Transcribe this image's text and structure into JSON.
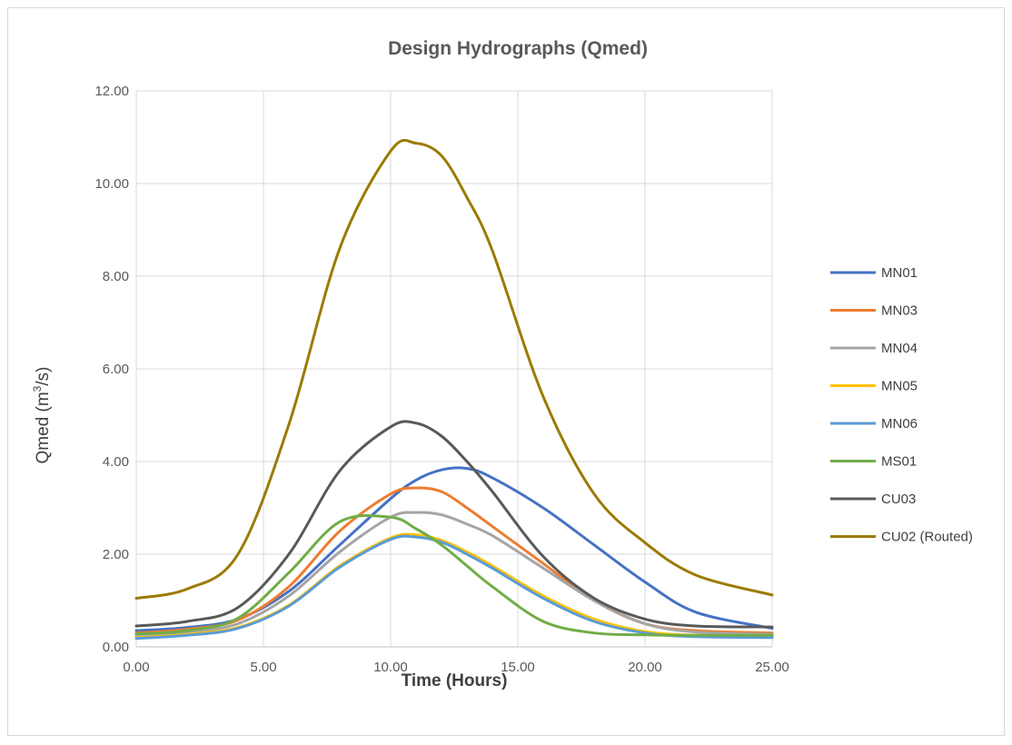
{
  "chart_data": {
    "type": "line",
    "title": "Design Hydrographs (Qmed)",
    "xlabel": "Time (Hours)",
    "ylabel_main": "Qmed (m",
    "ylabel_sup": "3",
    "ylabel_tail": "/s)",
    "xlim": [
      0,
      25
    ],
    "ylim": [
      0,
      12
    ],
    "x_ticks": [
      "0.00",
      "5.00",
      "10.00",
      "15.00",
      "20.00",
      "25.00"
    ],
    "y_ticks": [
      "0.00",
      "2.00",
      "4.00",
      "6.00",
      "8.00",
      "10.00",
      "12.00"
    ],
    "grid": true,
    "legend_position": "right",
    "x": [
      0,
      2,
      4,
      6,
      8,
      10,
      11,
      12,
      13,
      14,
      16,
      18,
      20,
      22,
      25
    ],
    "series": [
      {
        "name": "MN01",
        "color": "#4472C4",
        "values": [
          0.35,
          0.42,
          0.6,
          1.2,
          2.2,
          3.2,
          3.6,
          3.82,
          3.85,
          3.65,
          3.0,
          2.2,
          1.4,
          0.75,
          0.4
        ]
      },
      {
        "name": "MN03",
        "color": "#ED7D31",
        "values": [
          0.3,
          0.38,
          0.58,
          1.3,
          2.5,
          3.3,
          3.43,
          3.35,
          3.0,
          2.6,
          1.8,
          1.0,
          0.5,
          0.35,
          0.3
        ]
      },
      {
        "name": "MN04",
        "color": "#A5A5A5",
        "values": [
          0.25,
          0.32,
          0.5,
          1.1,
          2.05,
          2.8,
          2.9,
          2.85,
          2.65,
          2.4,
          1.7,
          1.0,
          0.5,
          0.32,
          0.27
        ]
      },
      {
        "name": "MN05",
        "color": "#FFC000",
        "values": [
          0.2,
          0.27,
          0.42,
          0.9,
          1.75,
          2.35,
          2.42,
          2.3,
          2.05,
          1.75,
          1.1,
          0.6,
          0.33,
          0.25,
          0.22
        ]
      },
      {
        "name": "MN06",
        "color": "#5B9BD5",
        "values": [
          0.18,
          0.25,
          0.4,
          0.88,
          1.72,
          2.32,
          2.37,
          2.26,
          2.0,
          1.7,
          1.05,
          0.55,
          0.3,
          0.22,
          0.2
        ]
      },
      {
        "name": "MS01",
        "color": "#70AD47",
        "values": [
          0.28,
          0.35,
          0.62,
          1.6,
          2.7,
          2.8,
          2.55,
          2.2,
          1.75,
          1.3,
          0.55,
          0.3,
          0.26,
          0.25,
          0.25
        ]
      },
      {
        "name": "CU03",
        "color": "#595959",
        "values": [
          0.45,
          0.55,
          0.85,
          2.0,
          3.8,
          4.75,
          4.83,
          4.55,
          4.0,
          3.35,
          1.95,
          1.05,
          0.6,
          0.45,
          0.43
        ]
      },
      {
        "name": "CU02 (Routed)",
        "color": "#9C7A00",
        "values": [
          1.05,
          1.25,
          2.0,
          4.8,
          8.6,
          10.7,
          10.87,
          10.6,
          9.7,
          8.55,
          5.4,
          3.3,
          2.25,
          1.55,
          1.12
        ]
      }
    ]
  }
}
